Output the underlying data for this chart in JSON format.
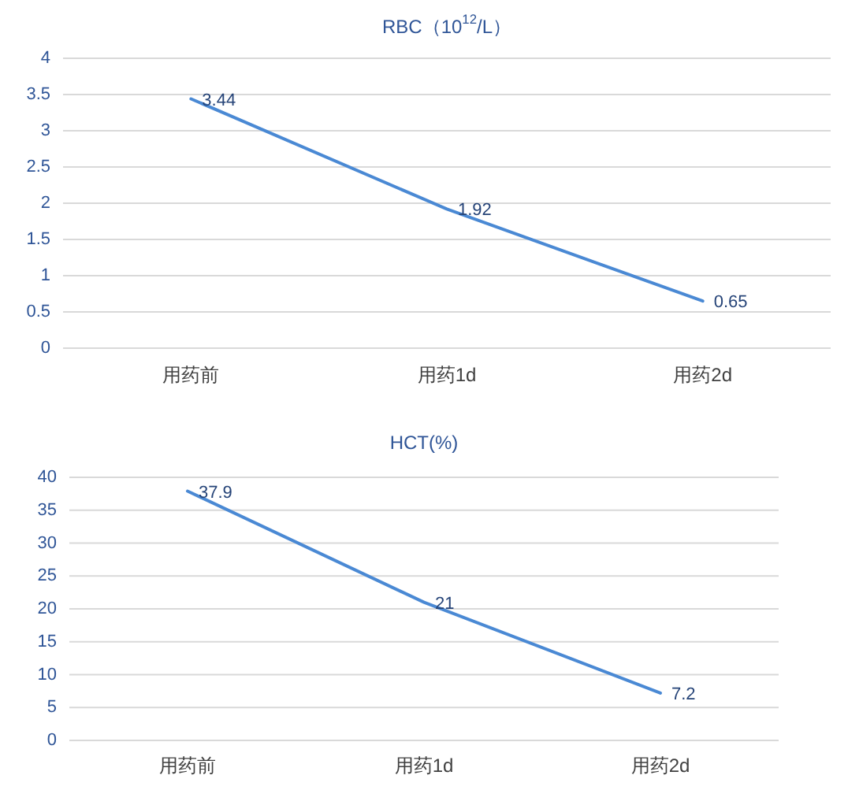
{
  "chart_data": [
    {
      "type": "line",
      "title": "RBC（10$^{12}$/L）",
      "categories": [
        "用药前",
        "用药1d",
        "用药2d"
      ],
      "series": [
        {
          "color": "#4a89d4",
          "values": [
            3.44,
            1.92,
            0.65
          ]
        }
      ],
      "ylim": [
        0,
        4
      ],
      "yticks": [
        0,
        0.5,
        1,
        1.5,
        2,
        2.5,
        3,
        3.5,
        4
      ],
      "grid": "y",
      "data_labels": true
    },
    {
      "type": "line",
      "title": "HCT(%)",
      "categories": [
        "用药前",
        "用药1d",
        "用药2d"
      ],
      "series": [
        {
          "color": "#4a89d4",
          "values": [
            37.9,
            21,
            7.2
          ]
        }
      ],
      "ylim": [
        0,
        40
      ],
      "yticks": [
        0,
        5,
        10,
        15,
        20,
        25,
        30,
        35,
        40
      ],
      "grid": "y",
      "data_labels": true
    }
  ]
}
